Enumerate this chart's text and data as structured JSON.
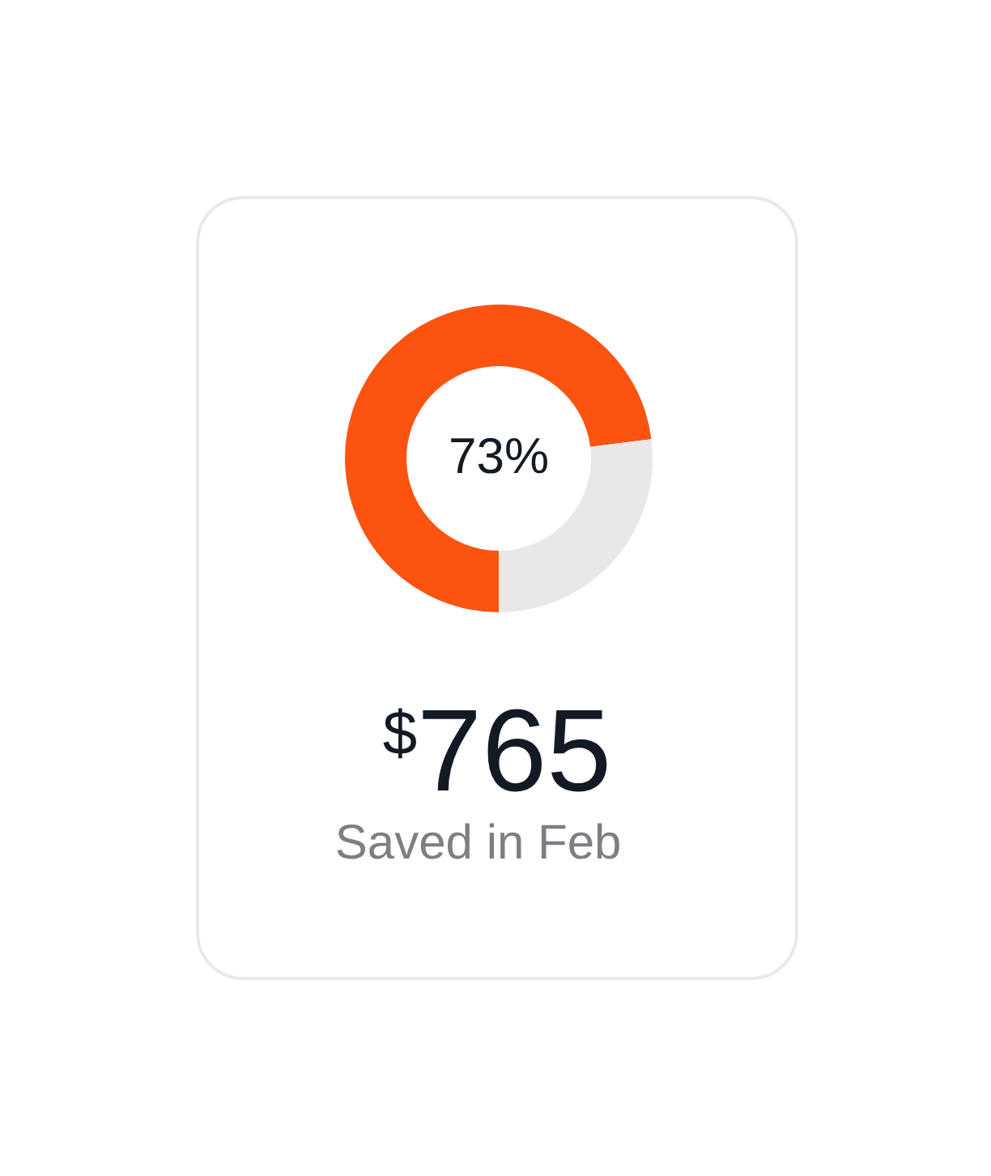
{
  "chart_data": {
    "type": "donut",
    "title": "$^{$}$765",
    "subtitle": "Saved in Feb",
    "categories": [
      null,
      null
    ],
    "values": [
      73,
      27
    ],
    "colors": [
      "#fc5310",
      "#e8e8e8"
    ],
    "value_labels": [
      "73%",
      null
    ]
  }
}
